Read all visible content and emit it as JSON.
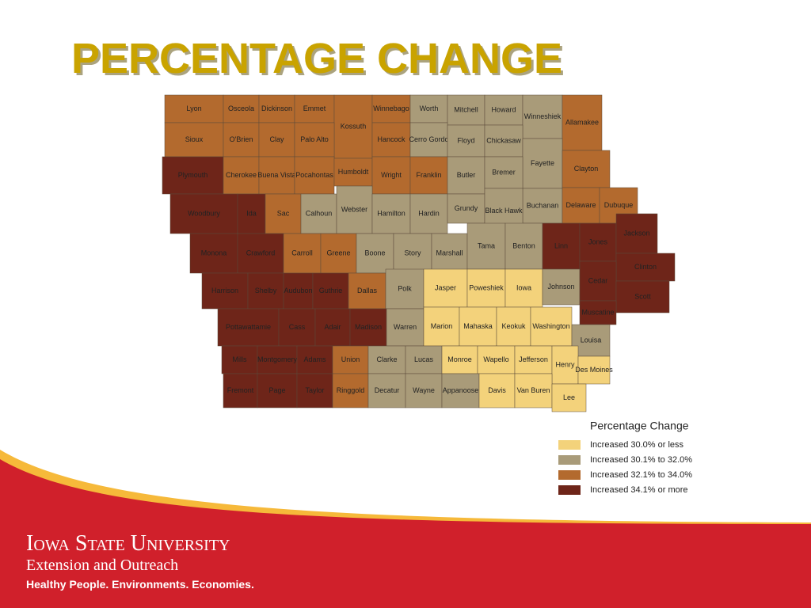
{
  "title": "PERCENTAGE CHANGE",
  "map": {
    "counties": [
      {
        "name": "Lyon",
        "color": "#b36a2e"
      },
      {
        "name": "Osceola",
        "color": "#b36a2e"
      },
      {
        "name": "Dickinson",
        "color": "#b36a2e"
      },
      {
        "name": "Emmet",
        "color": "#b36a2e"
      },
      {
        "name": "Kossuth",
        "color": "#b36a2e"
      },
      {
        "name": "Winnebago",
        "color": "#b36a2e"
      },
      {
        "name": "Worth",
        "color": "#a99b79"
      },
      {
        "name": "Mitchell",
        "color": "#a99b79"
      },
      {
        "name": "Howard",
        "color": "#a99b79"
      },
      {
        "name": "Winneshiek",
        "color": "#a99b79"
      },
      {
        "name": "Allamakee",
        "color": "#b36a2e"
      },
      {
        "name": "Sioux",
        "color": "#b36a2e"
      },
      {
        "name": "O'Brien",
        "color": "#b36a2e"
      },
      {
        "name": "Clay",
        "color": "#b36a2e"
      },
      {
        "name": "Palo Alto",
        "color": "#b36a2e"
      },
      {
        "name": "Hancock",
        "color": "#b36a2e"
      },
      {
        "name": "Cerro Gordo",
        "color": "#a99b79"
      },
      {
        "name": "Floyd",
        "color": "#a99b79"
      },
      {
        "name": "Chickasaw",
        "color": "#a99b79"
      },
      {
        "name": "Fayette",
        "color": "#a99b79"
      },
      {
        "name": "Clayton",
        "color": "#b36a2e"
      },
      {
        "name": "Plymouth",
        "color": "#6e2519"
      },
      {
        "name": "Cherokee",
        "color": "#b36a2e"
      },
      {
        "name": "Buena Vista",
        "color": "#b36a2e"
      },
      {
        "name": "Pocahontas",
        "color": "#b36a2e"
      },
      {
        "name": "Humboldt",
        "color": "#b36a2e"
      },
      {
        "name": "Wright",
        "color": "#b36a2e"
      },
      {
        "name": "Franklin",
        "color": "#b36a2e"
      },
      {
        "name": "Butler",
        "color": "#a99b79"
      },
      {
        "name": "Bremer",
        "color": "#a99b79"
      },
      {
        "name": "Buchanan",
        "color": "#a99b79"
      },
      {
        "name": "Delaware",
        "color": "#b36a2e"
      },
      {
        "name": "Dubuque",
        "color": "#b36a2e"
      },
      {
        "name": "Woodbury",
        "color": "#6e2519"
      },
      {
        "name": "Ida",
        "color": "#6e2519"
      },
      {
        "name": "Sac",
        "color": "#b36a2e"
      },
      {
        "name": "Calhoun",
        "color": "#a99b79"
      },
      {
        "name": "Webster",
        "color": "#a99b79"
      },
      {
        "name": "Hamilton",
        "color": "#a99b79"
      },
      {
        "name": "Hardin",
        "color": "#a99b79"
      },
      {
        "name": "Grundy",
        "color": "#a99b79"
      },
      {
        "name": "Black Hawk",
        "color": "#a99b79"
      },
      {
        "name": "Monona",
        "color": "#6e2519"
      },
      {
        "name": "Crawford",
        "color": "#6e2519"
      },
      {
        "name": "Carroll",
        "color": "#b36a2e"
      },
      {
        "name": "Greene",
        "color": "#b36a2e"
      },
      {
        "name": "Boone",
        "color": "#a99b79"
      },
      {
        "name": "Story",
        "color": "#a99b79"
      },
      {
        "name": "Marshall",
        "color": "#a99b79"
      },
      {
        "name": "Tama",
        "color": "#a99b79"
      },
      {
        "name": "Benton",
        "color": "#a99b79"
      },
      {
        "name": "Linn",
        "color": "#6e2519"
      },
      {
        "name": "Jones",
        "color": "#6e2519"
      },
      {
        "name": "Jackson",
        "color": "#6e2519"
      },
      {
        "name": "Clinton",
        "color": "#6e2519"
      },
      {
        "name": "Harrison",
        "color": "#6e2519"
      },
      {
        "name": "Shelby",
        "color": "#6e2519"
      },
      {
        "name": "Audubon",
        "color": "#6e2519"
      },
      {
        "name": "Guthrie",
        "color": "#6e2519"
      },
      {
        "name": "Dallas",
        "color": "#b36a2e"
      },
      {
        "name": "Polk",
        "color": "#a99b79"
      },
      {
        "name": "Jasper",
        "color": "#f3d27b"
      },
      {
        "name": "Poweshiek",
        "color": "#f3d27b"
      },
      {
        "name": "Iowa",
        "color": "#f3d27b"
      },
      {
        "name": "Johnson",
        "color": "#a99b79"
      },
      {
        "name": "Cedar",
        "color": "#6e2519"
      },
      {
        "name": "Scott",
        "color": "#6e2519"
      },
      {
        "name": "Muscatine",
        "color": "#6e2519"
      },
      {
        "name": "Pottawattamie",
        "color": "#6e2519"
      },
      {
        "name": "Cass",
        "color": "#6e2519"
      },
      {
        "name": "Adair",
        "color": "#6e2519"
      },
      {
        "name": "Madison",
        "color": "#6e2519"
      },
      {
        "name": "Warren",
        "color": "#a99b79"
      },
      {
        "name": "Marion",
        "color": "#f3d27b"
      },
      {
        "name": "Mahaska",
        "color": "#f3d27b"
      },
      {
        "name": "Keokuk",
        "color": "#f3d27b"
      },
      {
        "name": "Washington",
        "color": "#f3d27b"
      },
      {
        "name": "Louisa",
        "color": "#a99b79"
      },
      {
        "name": "Mills",
        "color": "#6e2519"
      },
      {
        "name": "Montgomery",
        "color": "#6e2519"
      },
      {
        "name": "Adams",
        "color": "#6e2519"
      },
      {
        "name": "Union",
        "color": "#b36a2e"
      },
      {
        "name": "Clarke",
        "color": "#a99b79"
      },
      {
        "name": "Lucas",
        "color": "#a99b79"
      },
      {
        "name": "Monroe",
        "color": "#f3d27b"
      },
      {
        "name": "Wapello",
        "color": "#f3d27b"
      },
      {
        "name": "Jefferson",
        "color": "#f3d27b"
      },
      {
        "name": "Henry",
        "color": "#f3d27b"
      },
      {
        "name": "Des Moines",
        "color": "#f3d27b"
      },
      {
        "name": "Fremont",
        "color": "#6e2519"
      },
      {
        "name": "Page",
        "color": "#6e2519"
      },
      {
        "name": "Taylor",
        "color": "#6e2519"
      },
      {
        "name": "Ringgold",
        "color": "#b36a2e"
      },
      {
        "name": "Decatur",
        "color": "#a99b79"
      },
      {
        "name": "Wayne",
        "color": "#a99b79"
      },
      {
        "name": "Appanoose",
        "color": "#a99b79"
      },
      {
        "name": "Davis",
        "color": "#f3d27b"
      },
      {
        "name": "Van Buren",
        "color": "#f3d27b"
      },
      {
        "name": "Lee",
        "color": "#f3d27b"
      }
    ],
    "legend": {
      "title": "Percentage Change",
      "items": [
        {
          "label": "Increased 30.0% or less",
          "color": "#f3d27b"
        },
        {
          "label": "Increased 30.1% to 32.0%",
          "color": "#a99b79"
        },
        {
          "label": "Increased 32.1% to 34.0%",
          "color": "#b36a2e"
        },
        {
          "label": "Increased 34.1% or more",
          "color": "#6e2519"
        }
      ]
    }
  },
  "footer": {
    "university": "Iowa State University",
    "unit": "Extension and Outreach",
    "tagline": "Healthy People. Environments. Economies."
  }
}
